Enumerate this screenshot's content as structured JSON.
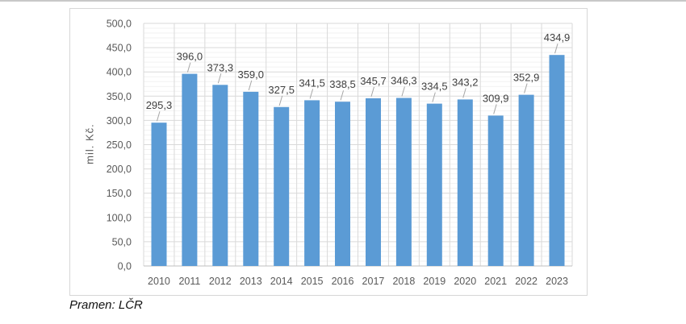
{
  "page": {
    "source_note": "Pramen: LČR"
  },
  "chart_data": {
    "type": "bar",
    "title": "",
    "xlabel": "",
    "ylabel": "mil. Kč.",
    "categories": [
      "2010",
      "2011",
      "2012",
      "2013",
      "2014",
      "2015",
      "2016",
      "2017",
      "2018",
      "2019",
      "2020",
      "2021",
      "2022",
      "2023"
    ],
    "values": [
      295.3,
      396.0,
      373.3,
      359.0,
      327.5,
      341.5,
      338.5,
      345.7,
      346.3,
      334.5,
      343.2,
      309.9,
      352.9,
      434.9
    ],
    "value_labels": [
      "295,3",
      "396,0",
      "373,3",
      "359,0",
      "327,5",
      "341,5",
      "338,5",
      "345,7",
      "346,3",
      "334,5",
      "343,2",
      "309,9",
      "352,9",
      "434,9"
    ],
    "ylim": [
      0,
      500
    ],
    "ytick_step": 50,
    "yminor_step": 10,
    "ytick_labels": [
      "0,0",
      "50,0",
      "100,0",
      "150,0",
      "200,0",
      "250,0",
      "300,0",
      "350,0",
      "400,0",
      "450,0",
      "500,0"
    ],
    "legend": "none",
    "grid": "horizontal major+minor, vertical major at category boundaries",
    "data_labels": "above bars with leader lines",
    "colors": {
      "bar": "#5b9bd5",
      "grid_major": "#d9d9d9",
      "grid_minor": "#f2f2f2",
      "axis_line": "#bfbfbf",
      "data_label": "#404040",
      "tick_label": "#595959",
      "leader_line": "#a6a6a6",
      "frame_border": "#d7d7d7"
    }
  }
}
